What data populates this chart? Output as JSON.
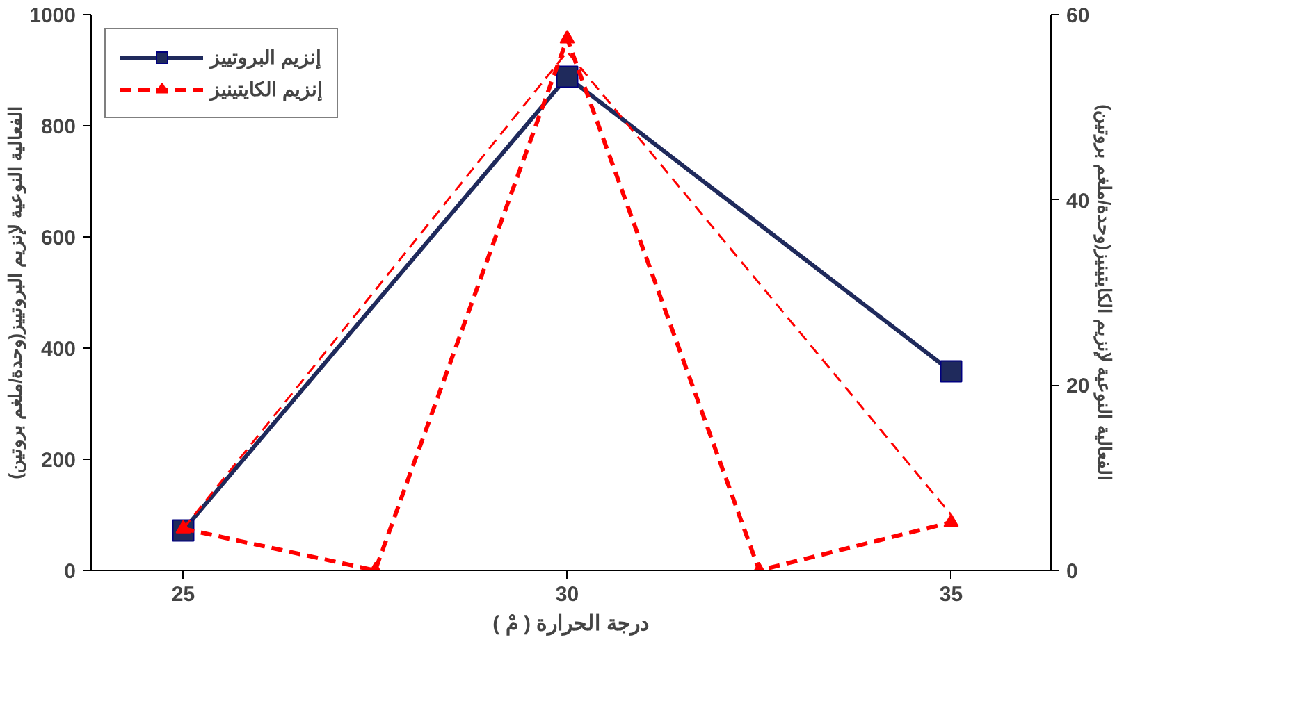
{
  "chart_data": {
    "type": "line",
    "xlabel": "درجة الحرارة ( مْ )",
    "ylabel": "الفعالية النوعية لإنزيم البروتييز(وحدة/ملغم بروتين)",
    "y2label": "الفعالية النوعية لإنزيم الكايتينيز(وحدة/ملغم بروتين)",
    "xlim": [
      23.8,
      36.3
    ],
    "xticks": [
      25,
      30,
      35
    ],
    "ylim": [
      0,
      1000
    ],
    "yticks": [
      0,
      200,
      400,
      600,
      800,
      1000
    ],
    "y2lim": [
      0,
      60
    ],
    "y2ticks": [
      0,
      20,
      40,
      60
    ],
    "grid": false,
    "legend": "top",
    "series": [
      {
        "name": "إنزيم البروتييز",
        "color": "#1f2a5c",
        "x": [
          25,
          30,
          35
        ],
        "values": [
          72,
          888,
          358
        ],
        "marker": "square",
        "line_style": "solid"
      },
      {
        "name": "إنزيم الكايتينيز",
        "color": "#ff0000",
        "x": [
          25,
          27.5,
          30,
          32.5,
          35
        ],
        "values": [
          4.5,
          0,
          57.4,
          0,
          5.2
        ],
        "axis": "y2",
        "marker": "triangle",
        "line_style": "dashed"
      },
      {
        "color": "#ff0000",
        "x": [
          25,
          30,
          35
        ],
        "values": [
          4.5,
          56,
          6
        ],
        "axis": "y2",
        "marker": "none",
        "line_style": "dashed"
      }
    ]
  }
}
